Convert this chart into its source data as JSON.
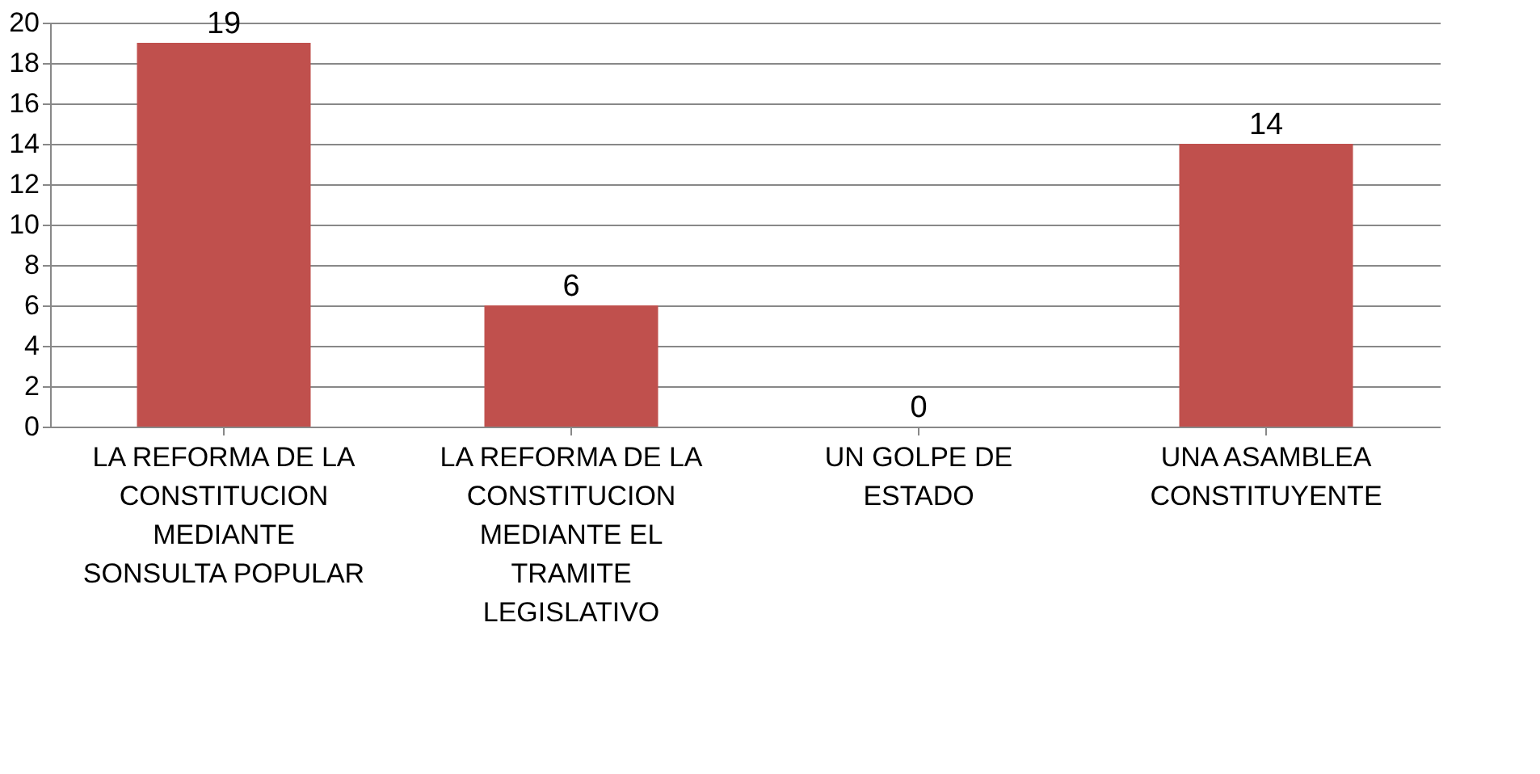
{
  "chart_data": {
    "type": "bar",
    "categories": [
      "LA REFORMA DE LA CONSTITUCION MEDIANTE SONSULTA POPULAR",
      "LA REFORMA DE LA CONSTITUCION MEDIANTE EL TRAMITE LEGISLATIVO",
      "UN GOLPE DE ESTADO",
      "UNA ASAMBLEA CONSTITUYENTE"
    ],
    "values": [
      19,
      6,
      0,
      14
    ],
    "color": "#c0504d",
    "ylim": [
      0,
      20
    ],
    "yticks": [
      0,
      2,
      4,
      6,
      8,
      10,
      12,
      14,
      16,
      18,
      20
    ],
    "grid": "y",
    "data_labels": true
  }
}
